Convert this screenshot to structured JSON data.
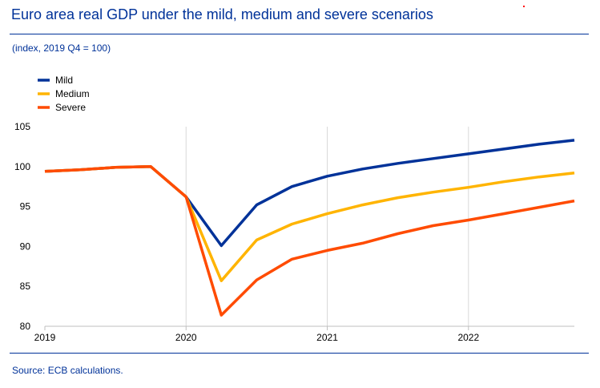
{
  "header": {
    "title": "Euro area real GDP under the mild, medium and severe scenarios",
    "subtitle": "(index, 2019 Q4 = 100)"
  },
  "footer": {
    "source": "Source: ECB calculations."
  },
  "chart_data": {
    "type": "line",
    "title": "Euro area real GDP under the mild, medium and severe scenarios",
    "subtitle": "(index, 2019 Q4 = 100)",
    "xlabel": "",
    "ylabel": "",
    "x": [
      "2019Q1",
      "2019Q2",
      "2019Q3",
      "2019Q4",
      "2020Q1",
      "2020Q2",
      "2020Q3",
      "2020Q4",
      "2021Q1",
      "2021Q2",
      "2021Q3",
      "2021Q4",
      "2022Q1",
      "2022Q2",
      "2022Q3",
      "2022Q4"
    ],
    "x_tick_labels": [
      "2019",
      "2020",
      "2021",
      "2022"
    ],
    "y_ticks": [
      80,
      85,
      90,
      95,
      100,
      105
    ],
    "ylim": [
      80,
      105
    ],
    "grid": "vertical at years",
    "legend_position": "top-left",
    "series": [
      {
        "name": "Mild",
        "color": "#003299",
        "values": [
          99.4,
          99.6,
          99.9,
          100.0,
          96.2,
          90.1,
          95.2,
          97.5,
          98.8,
          99.7,
          100.4,
          101.0,
          101.6,
          102.2,
          102.8,
          103.3
        ]
      },
      {
        "name": "Medium",
        "color": "#FFB400",
        "values": [
          99.4,
          99.6,
          99.9,
          100.0,
          96.2,
          85.7,
          90.8,
          92.8,
          94.1,
          95.2,
          96.1,
          96.8,
          97.4,
          98.1,
          98.7,
          99.2
        ]
      },
      {
        "name": "Severe",
        "color": "#FF4B00",
        "values": [
          99.4,
          99.6,
          99.9,
          100.0,
          96.2,
          81.4,
          85.8,
          88.4,
          89.5,
          90.4,
          91.6,
          92.6,
          93.3,
          94.1,
          94.9,
          95.7
        ]
      }
    ]
  }
}
